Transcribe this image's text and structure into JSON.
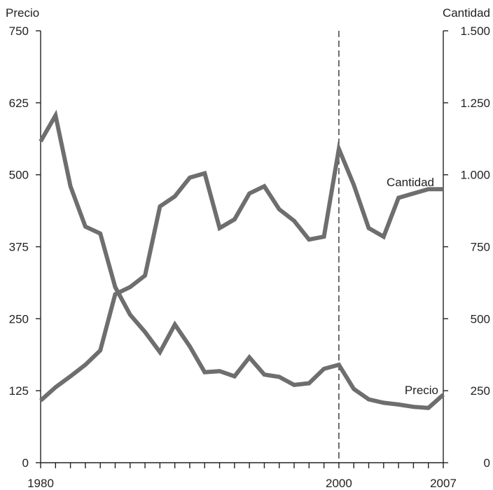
{
  "chart_data": {
    "type": "line",
    "ylabel_left": "Precio",
    "ylabel_right": "Cantidad",
    "xlim": [
      1980,
      2007
    ],
    "ylim_left": [
      0,
      750
    ],
    "ylim_right": [
      0,
      1500
    ],
    "left_ticks": [
      0,
      125,
      250,
      375,
      500,
      625,
      750
    ],
    "left_tick_labels": [
      "0",
      "125",
      "250",
      "375",
      "500",
      "625",
      "750"
    ],
    "right_ticks": [
      0,
      250,
      500,
      750,
      1000,
      1250,
      1500
    ],
    "right_tick_labels": [
      "0",
      "250",
      "500",
      "750",
      "1.000",
      "1.250",
      "1.500"
    ],
    "x_tick_labels": [
      {
        "value": 1980,
        "label": "1980"
      },
      {
        "value": 2000,
        "label": "2000"
      },
      {
        "value": 2007,
        "label": "2007"
      }
    ],
    "marker_year": 2000,
    "grid": false,
    "line_color": "#6e6e6e",
    "x": [
      1980,
      1981,
      1982,
      1983,
      1984,
      1985,
      1986,
      1987,
      1988,
      1989,
      1990,
      1991,
      1992,
      1993,
      1994,
      1995,
      1996,
      1997,
      1998,
      1999,
      2000,
      2001,
      2002,
      2003,
      2004,
      2005,
      2006,
      2007
    ],
    "series": [
      {
        "name": "Precio",
        "axis": "left",
        "values": [
          558,
          603,
          480,
          410,
          398,
          305,
          257,
          227,
          192,
          240,
          202,
          157,
          159,
          150,
          183,
          153,
          149,
          135,
          138,
          163,
          170,
          128,
          110,
          104,
          101,
          97,
          95,
          118
        ]
      },
      {
        "name": "Cantidad",
        "axis": "right",
        "values": [
          216,
          262,
          300,
          340,
          390,
          585,
          610,
          650,
          890,
          925,
          990,
          1005,
          815,
          845,
          935,
          960,
          880,
          840,
          775,
          785,
          1090,
          965,
          815,
          785,
          920,
          935,
          950,
          950
        ]
      }
    ]
  }
}
